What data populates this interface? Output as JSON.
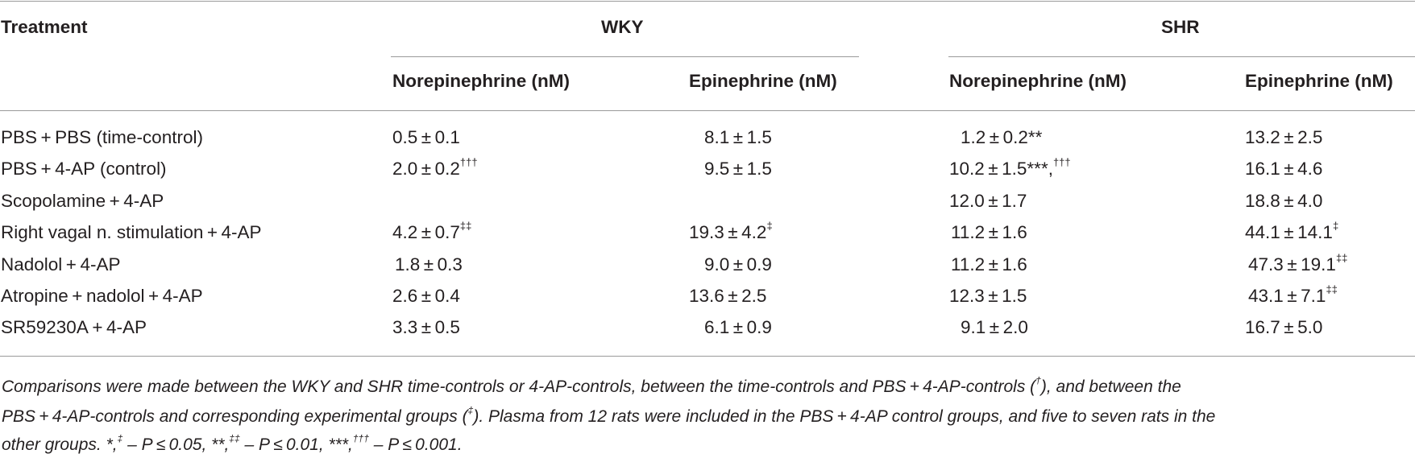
{
  "table": {
    "header": {
      "treatment": "Treatment",
      "groups": [
        "WKY",
        "SHR"
      ],
      "subcolumns": [
        "Norepinephrine (nM)",
        "Epinephrine (nM)",
        "Norepinephrine (nM)",
        "Epinephrine (nM)"
      ]
    },
    "rows": [
      {
        "treatment": "PBS + PBS (time-control)",
        "wky_ne": "0.5 ± 0.1",
        "wky_ne_sup": "",
        "wky_epi": "8.1 ± 1.5",
        "wky_epi_sup": "",
        "shr_ne": "1.2 ± 0.2**",
        "shr_ne_sup": "",
        "shr_epi": "13.2 ± 2.5",
        "shr_epi_sup": ""
      },
      {
        "treatment": "PBS + 4-AP (control)",
        "wky_ne": "2.0 ± 0.2",
        "wky_ne_sup": "†††",
        "wky_epi": "9.5 ± 1.5",
        "wky_epi_sup": "",
        "shr_ne": "10.2 ± 1.5***,",
        "shr_ne_sup": "†††",
        "shr_epi": "16.1 ± 4.6",
        "shr_epi_sup": ""
      },
      {
        "treatment": "Scopolamine + 4-AP",
        "wky_ne": "",
        "wky_ne_sup": "",
        "wky_epi": "",
        "wky_epi_sup": "",
        "shr_ne": "12.0 ± 1.7",
        "shr_ne_sup": "",
        "shr_epi": "18.8 ± 4.0",
        "shr_epi_sup": ""
      },
      {
        "treatment": "Right vagal n. stimulation + 4-AP",
        "wky_ne": "4.2 ± 0.7",
        "wky_ne_sup": "‡‡",
        "wky_epi": "19.3 ± 4.2",
        "wky_epi_sup": "‡",
        "shr_ne": "11.2 ± 1.6",
        "shr_ne_sup": "",
        "shr_epi": "44.1 ± 14.1",
        "shr_epi_sup": "‡"
      },
      {
        "treatment": "Nadolol + 4-AP",
        "wky_ne": "1.8 ± 0.3",
        "wky_ne_sup": "",
        "wky_epi": "9.0 ± 0.9",
        "wky_epi_sup": "",
        "shr_ne": "11.2 ± 1.6",
        "shr_ne_sup": "",
        "shr_epi": "47.3 ± 19.1",
        "shr_epi_sup": "‡‡"
      },
      {
        "treatment": "Atropine + nadolol + 4-AP",
        "wky_ne": "2.6 ± 0.4",
        "wky_ne_sup": "",
        "wky_epi": "13.6 ± 2.5",
        "wky_epi_sup": "",
        "shr_ne": "12.3 ± 1.5",
        "shr_ne_sup": "",
        "shr_epi": "43.1 ± 7.1",
        "shr_epi_sup": "‡‡"
      },
      {
        "treatment": "SR59230A + 4-AP",
        "wky_ne": "3.3 ± 0.5",
        "wky_ne_sup": "",
        "wky_epi": "6.1 ± 0.9",
        "wky_epi_sup": "",
        "shr_ne": "9.1 ± 2.0",
        "shr_ne_sup": "",
        "shr_epi": "16.7 ± 5.0",
        "shr_epi_sup": ""
      }
    ]
  },
  "footnote": {
    "line1_a": "Comparisons were made between the WKY and SHR time-controls or 4-AP-controls, between the time-controls and PBS + 4-AP-controls (",
    "line1_sup": "†",
    "line1_b": "), and between the",
    "line2_a": "PBS + 4-AP-controls and corresponding experimental groups (",
    "line2_sup": "‡",
    "line2_b": "). Plasma from 12 rats were included in the PBS + 4-AP control groups, and five to seven rats in the",
    "line3_a": "other groups. *,",
    "line3_sup1": "‡",
    "line3_b": " – P ≤ 0.05, **,",
    "line3_sup2": "‡‡",
    "line3_c": " – P ≤ 0.01, ***,",
    "line3_sup3": "†††",
    "line3_d": " – P ≤ 0.001."
  }
}
